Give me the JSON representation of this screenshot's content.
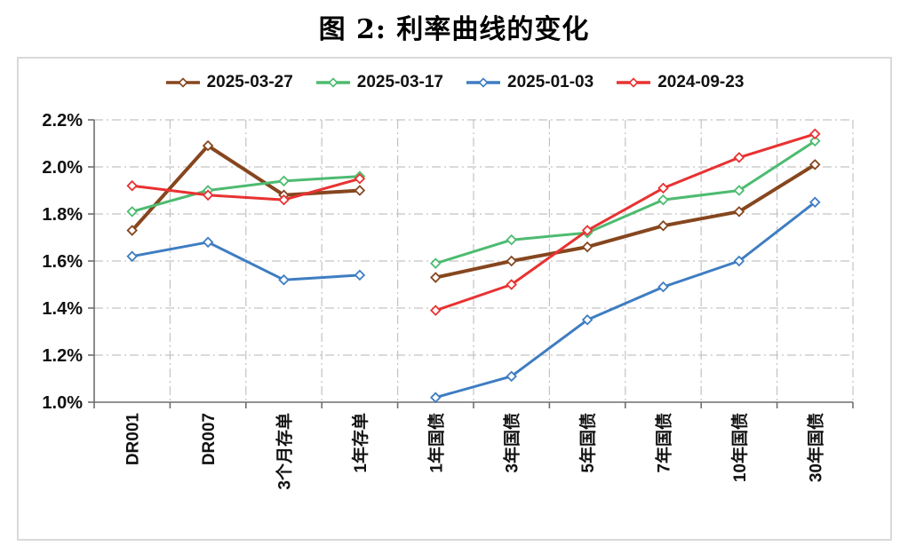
{
  "title": "图 2: 利率曲线的变化",
  "chart_data": {
    "type": "line",
    "title": "图 2: 利率曲线的变化",
    "categories": [
      "DR001",
      "DR007",
      "3个月存单",
      "1年存单",
      "1年国债",
      "3年国债",
      "5年国债",
      "7年国债",
      "10年国债",
      "30年国债"
    ],
    "series": [
      {
        "name": "2025-03-27",
        "color": "#86461E",
        "line_width": 4,
        "values": [
          1.73,
          2.09,
          1.88,
          1.9,
          1.53,
          1.6,
          1.66,
          1.75,
          1.81,
          2.01
        ]
      },
      {
        "name": "2025-03-17",
        "color": "#4DBB70",
        "line_width": 3,
        "values": [
          1.81,
          1.9,
          1.94,
          1.96,
          1.59,
          1.69,
          1.72,
          1.86,
          1.9,
          2.11
        ]
      },
      {
        "name": "2025-01-03",
        "color": "#3E7DC2",
        "line_width": 3,
        "values": [
          1.62,
          1.68,
          1.52,
          1.54,
          1.02,
          1.11,
          1.35,
          1.49,
          1.6,
          1.85
        ]
      },
      {
        "name": "2024-09-23",
        "color": "#E83231",
        "line_width": 3,
        "values": [
          1.92,
          1.88,
          1.86,
          1.95,
          1.39,
          1.5,
          1.73,
          1.91,
          2.04,
          2.14
        ]
      }
    ],
    "gap_after_index": 3,
    "ylim": [
      1.0,
      2.2
    ],
    "ytick_step": 0.2,
    "ytick_labels": [
      "1.0%",
      "1.2%",
      "1.4%",
      "1.6%",
      "1.8%",
      "2.0%",
      "2.2%"
    ],
    "unit": "%",
    "marker": "open-diamond",
    "legend_position": "top",
    "grid": "dash-dot",
    "style": {
      "grid_color": "#c3c3c3",
      "axis_color": "#6f6f6f",
      "label_color": "#111111",
      "plot_bg": "#ffffff",
      "box_border": "#d9d9d9"
    }
  }
}
